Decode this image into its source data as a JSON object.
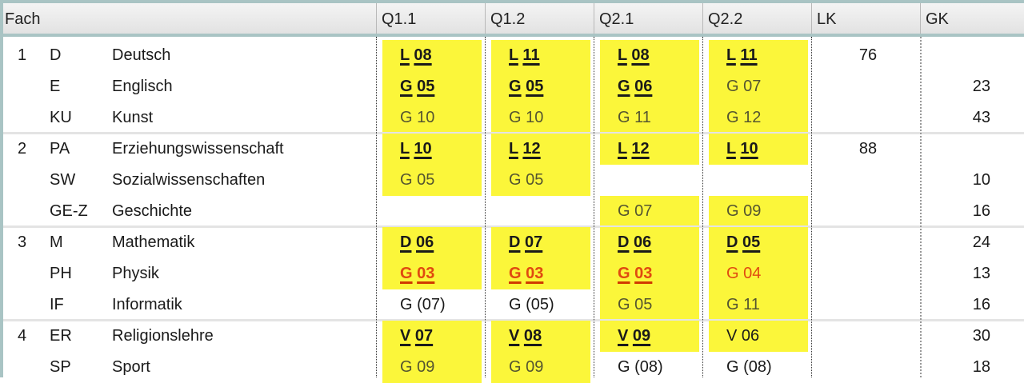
{
  "columns": [
    "Fach",
    "Q1.1",
    "Q1.2",
    "Q2.1",
    "Q2.2",
    "LK",
    "GK"
  ],
  "colors": {
    "highlight": "#fbf63a",
    "warning": "#e04a10",
    "header_border": "#a9c4c4"
  },
  "rows": [
    {
      "group": "1",
      "abbr": "D",
      "name": "Deutsch",
      "cells": [
        {
          "v": "L 08",
          "s": "yb"
        },
        {
          "v": "L 11",
          "s": "yb"
        },
        {
          "v": "L 08",
          "s": "yb"
        },
        {
          "v": "L 11",
          "s": "yb"
        }
      ],
      "lk": "76",
      "gk": ""
    },
    {
      "group": "",
      "abbr": "E",
      "name": "Englisch",
      "cells": [
        {
          "v": "G 05",
          "s": "yb"
        },
        {
          "v": "G 05",
          "s": "yb"
        },
        {
          "v": "G 06",
          "s": "yb"
        },
        {
          "v": "G 07",
          "s": "yg"
        }
      ],
      "lk": "",
      "gk": "23"
    },
    {
      "group": "",
      "abbr": "KU",
      "name": "Kunst",
      "cells": [
        {
          "v": "G 10",
          "s": "yg"
        },
        {
          "v": "G 10",
          "s": "yg"
        },
        {
          "v": "G 11",
          "s": "yg"
        },
        {
          "v": "G 12",
          "s": "yg"
        }
      ],
      "lk": "",
      "gk": "43"
    },
    {
      "group": "2",
      "abbr": "PA",
      "name": "Erziehungswissenschaft",
      "cells": [
        {
          "v": "L 10",
          "s": "yb"
        },
        {
          "v": "L 12",
          "s": "yb"
        },
        {
          "v": "L 12",
          "s": "yb"
        },
        {
          "v": "L 10",
          "s": "yb"
        }
      ],
      "lk": "88",
      "gk": ""
    },
    {
      "group": "",
      "abbr": "SW",
      "name": "Sozialwissenschaften",
      "cells": [
        {
          "v": "G 05",
          "s": "yg"
        },
        {
          "v": "G 05",
          "s": "yg"
        },
        {
          "v": "",
          "s": ""
        },
        {
          "v": "",
          "s": ""
        }
      ],
      "lk": "",
      "gk": "10"
    },
    {
      "group": "",
      "abbr": "GE-Z",
      "name": "Geschichte",
      "cells": [
        {
          "v": "",
          "s": ""
        },
        {
          "v": "",
          "s": ""
        },
        {
          "v": "G 07",
          "s": "yg"
        },
        {
          "v": "G 09",
          "s": "yg"
        }
      ],
      "lk": "",
      "gk": "16"
    },
    {
      "group": "3",
      "abbr": "M",
      "name": "Mathematik",
      "cells": [
        {
          "v": "D 06",
          "s": "yb"
        },
        {
          "v": "D 07",
          "s": "yb"
        },
        {
          "v": "D 06",
          "s": "yb"
        },
        {
          "v": "D 05",
          "s": "yb"
        }
      ],
      "lk": "",
      "gk": "24"
    },
    {
      "group": "",
      "abbr": "PH",
      "name": "Physik",
      "cells": [
        {
          "v": "G 03",
          "s": "yrb"
        },
        {
          "v": "G 03",
          "s": "yrb"
        },
        {
          "v": "G 03",
          "s": "yrb"
        },
        {
          "v": "G 04",
          "s": "yr"
        }
      ],
      "lk": "",
      "gk": "13"
    },
    {
      "group": "",
      "abbr": "IF",
      "name": "Informatik",
      "cells": [
        {
          "v": "G (07)",
          "s": "n"
        },
        {
          "v": "G (05)",
          "s": "n"
        },
        {
          "v": "G 05",
          "s": "yg"
        },
        {
          "v": "G 11",
          "s": "yg"
        }
      ],
      "lk": "",
      "gk": "16"
    },
    {
      "group": "4",
      "abbr": "ER",
      "name": "Religionslehre",
      "cells": [
        {
          "v": "V 07",
          "s": "yb"
        },
        {
          "v": "V 08",
          "s": "yb"
        },
        {
          "v": "V 09",
          "s": "yb"
        },
        {
          "v": "V 06",
          "s": "yn"
        }
      ],
      "lk": "",
      "gk": "30"
    },
    {
      "group": "",
      "abbr": "SP",
      "name": "Sport",
      "cells": [
        {
          "v": "G 09",
          "s": "yg"
        },
        {
          "v": "G 09",
          "s": "yg"
        },
        {
          "v": "G (08)",
          "s": "n"
        },
        {
          "v": "G (08)",
          "s": "n"
        }
      ],
      "lk": "",
      "gk": "18"
    }
  ]
}
